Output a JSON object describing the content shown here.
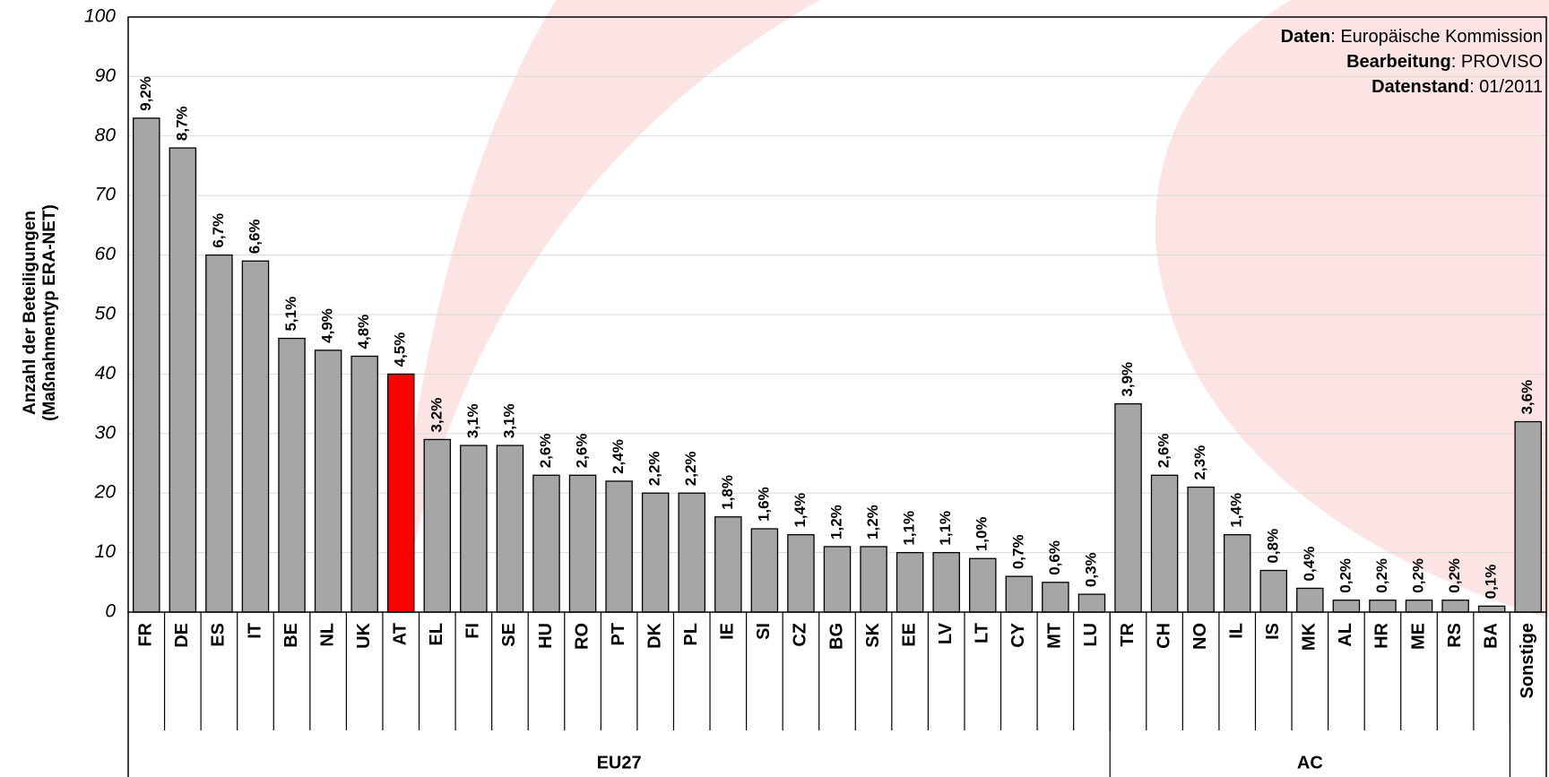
{
  "chart_data": {
    "type": "bar",
    "y_label": [
      "Anzahl der Beteiligungen",
      "(Maßnahmentyp ERA-NET)"
    ],
    "categories": [
      "FR",
      "DE",
      "ES",
      "IT",
      "BE",
      "NL",
      "UK",
      "AT",
      "EL",
      "FI",
      "SE",
      "HU",
      "RO",
      "PT",
      "DK",
      "PL",
      "IE",
      "SI",
      "CZ",
      "BG",
      "SK",
      "EE",
      "LV",
      "LT",
      "CY",
      "MT",
      "LU",
      "TR",
      "CH",
      "NO",
      "IL",
      "IS",
      "MK",
      "AL",
      "HR",
      "ME",
      "RS",
      "BA",
      "Sonstige"
    ],
    "values": [
      83,
      78,
      60,
      59,
      46,
      44,
      43,
      40,
      29,
      28,
      28,
      23,
      23,
      22,
      20,
      20,
      16,
      14,
      13,
      11,
      11,
      10,
      10,
      9,
      6,
      5,
      3,
      35,
      23,
      21,
      13,
      7,
      4,
      2,
      2,
      2,
      2,
      1,
      32
    ],
    "percent_labels": [
      "9,2%",
      "8,7%",
      "6,7%",
      "6,6%",
      "5,1%",
      "4,9%",
      "4,8%",
      "4,5%",
      "3,2%",
      "3,1%",
      "3,1%",
      "2,6%",
      "2,6%",
      "2,4%",
      "2,2%",
      "2,2%",
      "1,8%",
      "1,6%",
      "1,4%",
      "1,2%",
      "1,2%",
      "1,1%",
      "1,1%",
      "1,0%",
      "0,7%",
      "0,6%",
      "0,3%",
      "3,9%",
      "2,6%",
      "2,3%",
      "1,4%",
      "0,8%",
      "0,4%",
      "0,2%",
      "0,2%",
      "0,2%",
      "0,2%",
      "0,1%",
      "3,6%"
    ],
    "groups": [
      {
        "name": "EU27",
        "size": 27
      },
      {
        "name": "AC",
        "size": 11
      }
    ],
    "color": "#a6a6a6",
    "highlight": {
      "index": 7,
      "color": "#ff0000"
    },
    "ylim": [
      0,
      100
    ],
    "yticks": [
      0,
      10,
      20,
      30,
      40,
      50,
      60,
      70,
      80,
      90,
      100
    ],
    "grid": true,
    "source": [
      {
        "label": "Daten",
        "text": ": Europäische Kommission"
      },
      {
        "label": "Bearbeitung",
        "text": ": PROVISO"
      },
      {
        "label": "Datenstand",
        "text": ": 01/2011"
      }
    ]
  }
}
